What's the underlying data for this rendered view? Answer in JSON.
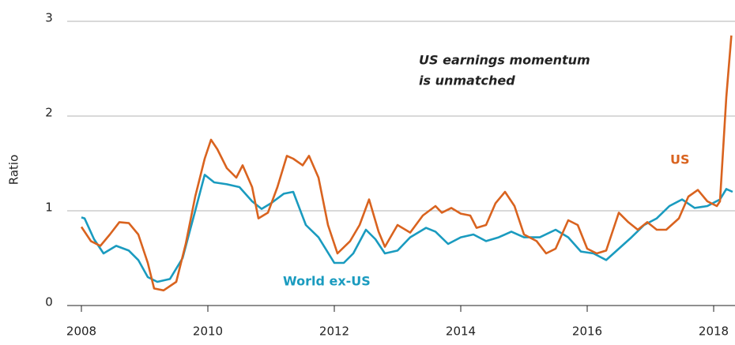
{
  "chart_data": {
    "type": "line",
    "ylabel": "Ratio",
    "annotation": [
      "US earnings momentum",
      "is unmatched"
    ],
    "xlim": [
      2007.775,
      2018.3375
    ],
    "ylim": [
      0,
      3
    ],
    "xticks": [
      2008,
      2010,
      2012,
      2014,
      2016,
      2018
    ],
    "yticks": [
      0,
      1,
      2,
      3
    ],
    "grid": true,
    "series": [
      {
        "name": "US",
        "color": "#d9631f",
        "x": [
          2008.0,
          2008.15,
          2008.3,
          2008.45,
          2008.6,
          2008.75,
          2008.9,
          2009.05,
          2009.15,
          2009.3,
          2009.5,
          2009.65,
          2009.8,
          2009.95,
          2010.05,
          2010.15,
          2010.3,
          2010.45,
          2010.55,
          2010.7,
          2010.8,
          2010.95,
          2011.1,
          2011.25,
          2011.35,
          2011.5,
          2011.6,
          2011.75,
          2011.9,
          2012.05,
          2012.25,
          2012.4,
          2012.55,
          2012.7,
          2012.8,
          2013.0,
          2013.2,
          2013.4,
          2013.6,
          2013.7,
          2013.85,
          2014.0,
          2014.15,
          2014.25,
          2014.4,
          2014.55,
          2014.7,
          2014.85,
          2015.0,
          2015.2,
          2015.35,
          2015.5,
          2015.7,
          2015.85,
          2016.0,
          2016.15,
          2016.3,
          2016.5,
          2016.65,
          2016.8,
          2016.95,
          2017.1,
          2017.25,
          2017.45,
          2017.6,
          2017.75,
          2017.9,
          2018.05,
          2018.1,
          2018.2,
          2018.28
        ],
        "values": [
          0.83,
          0.68,
          0.63,
          0.75,
          0.88,
          0.87,
          0.75,
          0.45,
          0.18,
          0.16,
          0.25,
          0.65,
          1.15,
          1.55,
          1.75,
          1.65,
          1.45,
          1.35,
          1.48,
          1.25,
          0.92,
          0.98,
          1.25,
          1.58,
          1.55,
          1.48,
          1.58,
          1.35,
          0.85,
          0.55,
          0.68,
          0.85,
          1.12,
          0.78,
          0.62,
          0.85,
          0.77,
          0.95,
          1.05,
          0.98,
          1.03,
          0.97,
          0.95,
          0.82,
          0.85,
          1.08,
          1.2,
          1.05,
          0.75,
          0.68,
          0.55,
          0.6,
          0.9,
          0.85,
          0.6,
          0.55,
          0.58,
          0.98,
          0.88,
          0.8,
          0.88,
          0.8,
          0.8,
          0.92,
          1.15,
          1.22,
          1.1,
          1.05,
          1.1,
          2.2,
          2.85
        ]
      },
      {
        "name": "World ex-US",
        "color": "#1a9bbf",
        "x": [
          2008.0,
          2008.05,
          2008.2,
          2008.35,
          2008.55,
          2008.75,
          2008.9,
          2009.05,
          2009.2,
          2009.4,
          2009.6,
          2009.8,
          2009.95,
          2010.1,
          2010.3,
          2010.5,
          2010.7,
          2010.85,
          2011.0,
          2011.2,
          2011.35,
          2011.55,
          2011.75,
          2012.0,
          2012.15,
          2012.3,
          2012.5,
          2012.65,
          2012.8,
          2013.0,
          2013.2,
          2013.45,
          2013.6,
          2013.8,
          2014.0,
          2014.2,
          2014.4,
          2014.6,
          2014.8,
          2015.0,
          2015.25,
          2015.5,
          2015.7,
          2015.9,
          2016.1,
          2016.3,
          2016.5,
          2016.7,
          2016.9,
          2017.1,
          2017.3,
          2017.5,
          2017.7,
          2017.9,
          2018.1,
          2018.2,
          2018.3
        ],
        "values": [
          0.93,
          0.92,
          0.7,
          0.55,
          0.63,
          0.58,
          0.48,
          0.3,
          0.25,
          0.28,
          0.5,
          1.0,
          1.38,
          1.3,
          1.28,
          1.25,
          1.1,
          1.02,
          1.08,
          1.18,
          1.2,
          0.85,
          0.72,
          0.45,
          0.45,
          0.55,
          0.8,
          0.7,
          0.55,
          0.58,
          0.72,
          0.82,
          0.78,
          0.65,
          0.72,
          0.75,
          0.68,
          0.72,
          0.78,
          0.72,
          0.72,
          0.8,
          0.72,
          0.57,
          0.55,
          0.48,
          0.6,
          0.72,
          0.85,
          0.92,
          1.05,
          1.12,
          1.03,
          1.05,
          1.12,
          1.23,
          1.2
        ]
      }
    ]
  }
}
